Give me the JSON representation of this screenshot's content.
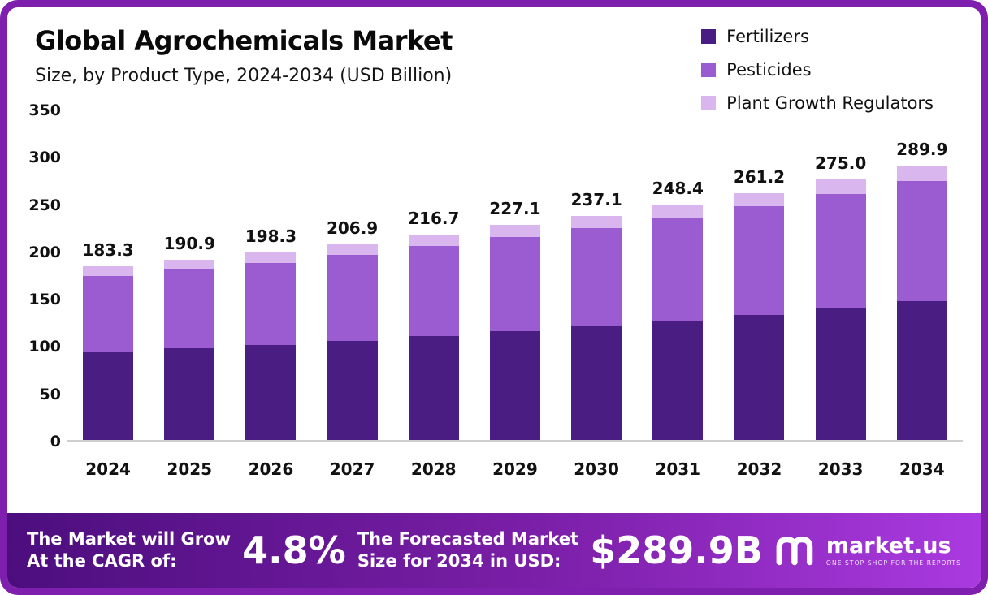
{
  "header": {
    "title": "Global Agrochemicals Market",
    "subtitle": "Size, by Product Type, 2024-2034 (USD Billion)"
  },
  "legend": [
    {
      "label": "Fertilizers",
      "color": "#4a1d82"
    },
    {
      "label": "Pesticides",
      "color": "#9a5cd0"
    },
    {
      "label": "Plant Growth Regulators",
      "color": "#dab6ee"
    }
  ],
  "chart_data": {
    "type": "bar",
    "stacked": true,
    "title": "Global Agrochemicals Market",
    "subtitle": "Size, by Product Type, 2024-2034 (USD Billion)",
    "categories": [
      "2024",
      "2025",
      "2026",
      "2027",
      "2028",
      "2029",
      "2030",
      "2031",
      "2032",
      "2033",
      "2034"
    ],
    "series": [
      {
        "name": "Fertilizers",
        "color": "#4a1d82",
        "values": [
          93.0,
          96.8,
          100.5,
          104.9,
          109.8,
          115.1,
          120.2,
          125.9,
          132.4,
          139.4,
          147.0
        ]
      },
      {
        "name": "Pesticides",
        "color": "#9a5cd0",
        "values": [
          80.2,
          83.6,
          86.8,
          90.6,
          94.9,
          99.4,
          103.8,
          108.8,
          114.4,
          120.4,
          126.9
        ]
      },
      {
        "name": "Plant Growth Regulators",
        "color": "#dab6ee",
        "values": [
          10.1,
          10.5,
          11.0,
          11.4,
          12.0,
          12.6,
          13.1,
          13.7,
          14.4,
          15.2,
          16.0
        ]
      }
    ],
    "totals": [
      183.3,
      190.9,
      198.3,
      206.9,
      216.7,
      227.1,
      237.1,
      248.4,
      261.2,
      275.0,
      289.9
    ],
    "ylim": [
      0,
      350
    ],
    "yticks": [
      0,
      50,
      100,
      150,
      200,
      250,
      300,
      350
    ],
    "grid": false,
    "legend_position": "top-right"
  },
  "banner": {
    "cagr_label_line1": "The Market will Grow",
    "cagr_label_line2": "At the CAGR of:",
    "cagr_value": "4.8%",
    "forecast_label_line1": "The Forecasted Market",
    "forecast_label_line2": "Size for 2034 in USD:",
    "forecast_value": "$289.9B",
    "logo_text": "market.us",
    "logo_tagline": "ONE STOP SHOP FOR THE REPORTS"
  },
  "colors": {
    "frame_border": "#7f1fae",
    "banner_gradient": [
      "#4c0e7e",
      "#7b1fa8",
      "#aa3ae0"
    ],
    "axis_line": "#cfcfcf"
  }
}
